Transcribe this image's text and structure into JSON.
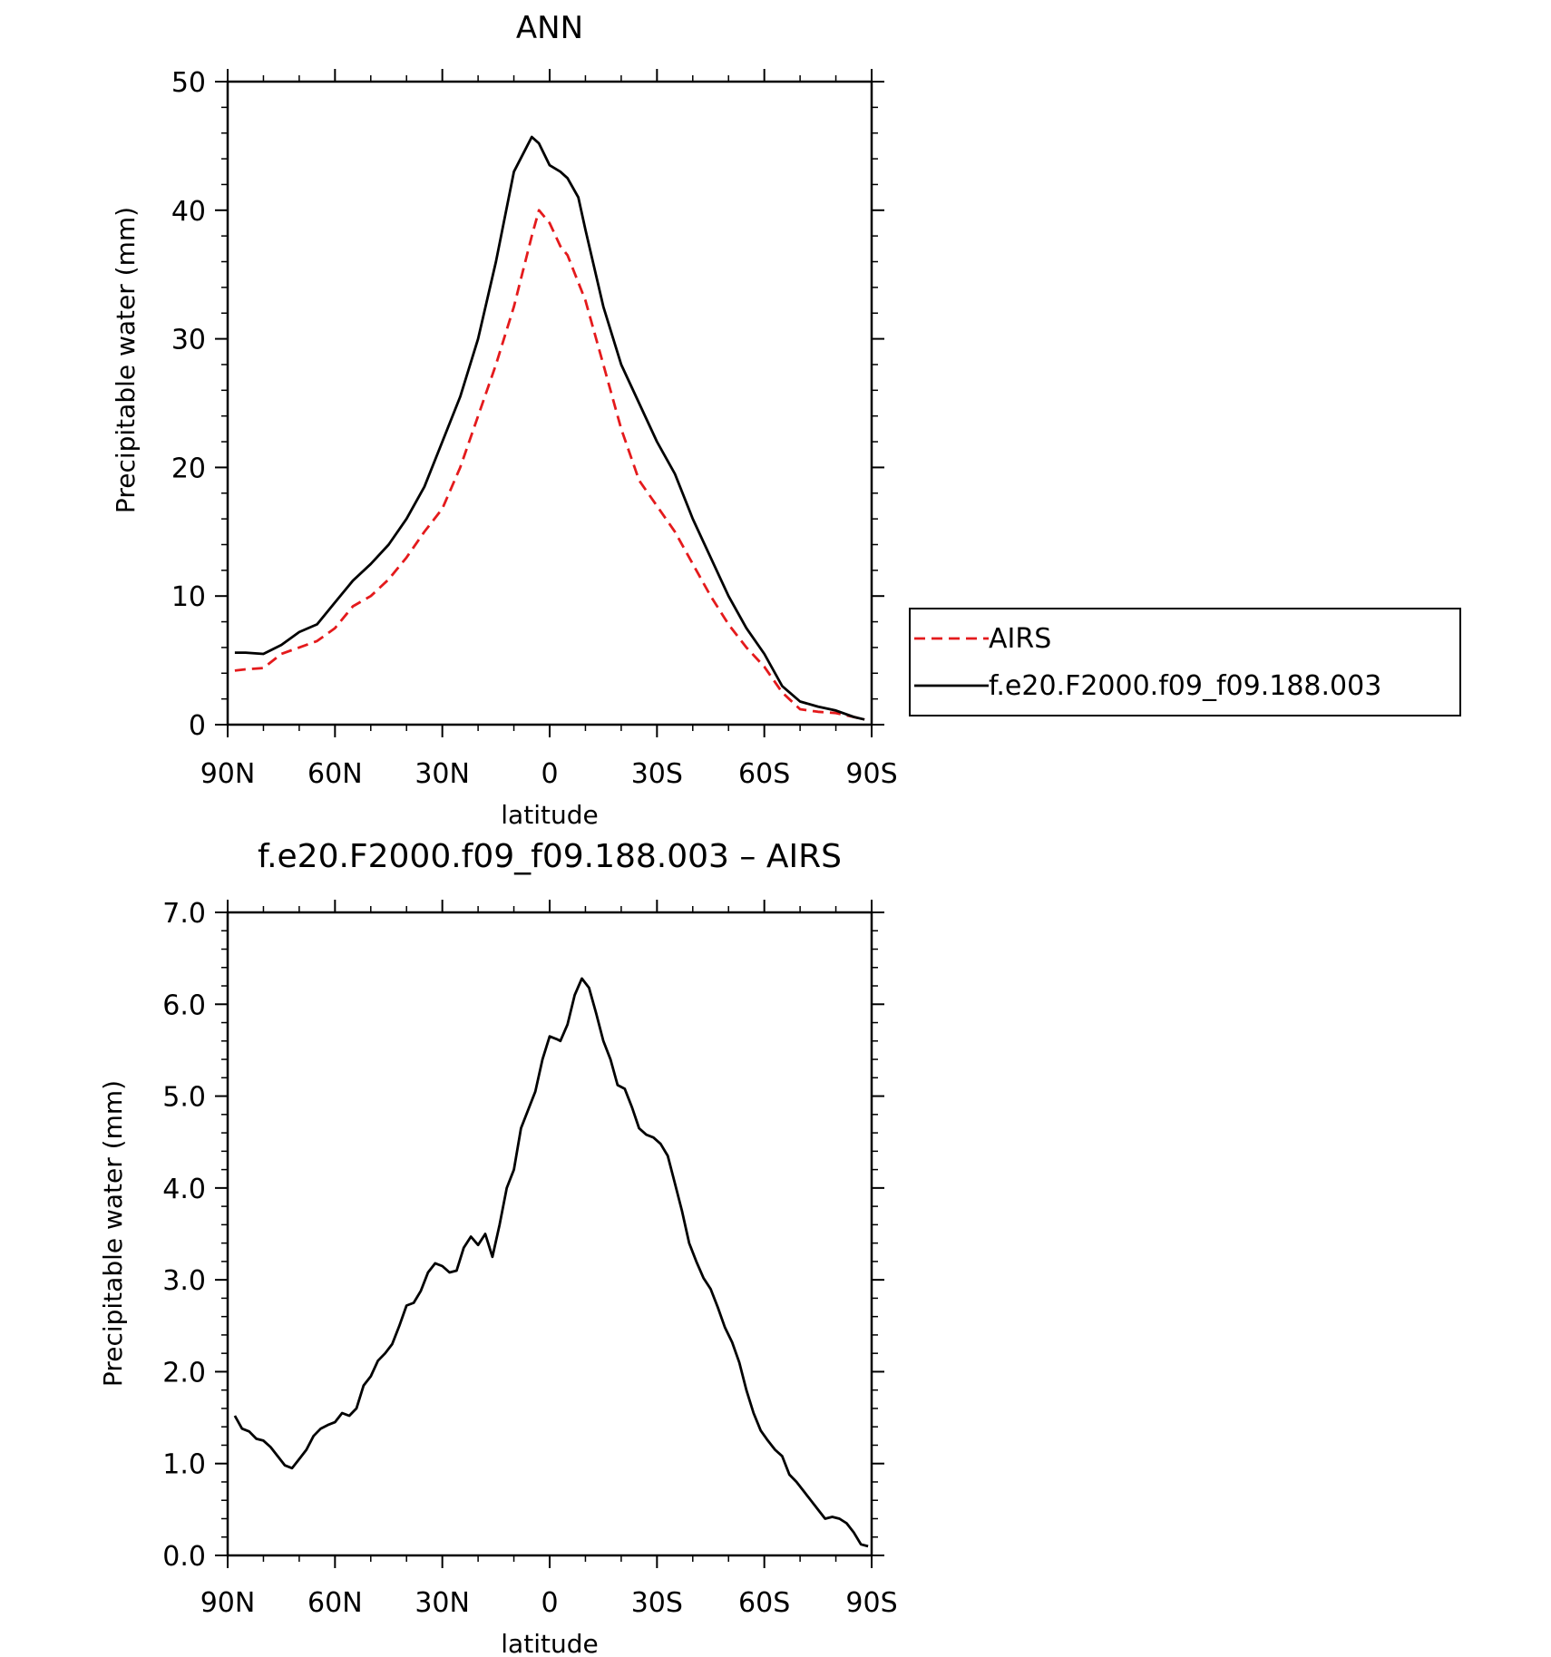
{
  "chart_data": [
    {
      "type": "line",
      "title": "ANN",
      "xlabel": "latitude",
      "ylabel": "Precipitable water (mm)",
      "ylim": [
        0,
        50
      ],
      "yticks": [
        "0",
        "10",
        "20",
        "30",
        "40",
        "50"
      ],
      "xlim": [
        90,
        -90
      ],
      "xticks": [
        {
          "value": 90,
          "label": "90N"
        },
        {
          "value": 60,
          "label": "60N"
        },
        {
          "value": 30,
          "label": "30N"
        },
        {
          "value": 0,
          "label": "0"
        },
        {
          "value": -30,
          "label": "30S"
        },
        {
          "value": -60,
          "label": "60S"
        },
        {
          "value": -90,
          "label": "90S"
        }
      ],
      "legend": {
        "position": "right",
        "boxed": true
      },
      "series": [
        {
          "name": "AIRS",
          "color": "#e41a1c",
          "dash": "dashed",
          "x": [
            88,
            85,
            80,
            75,
            70,
            65,
            60,
            55,
            50,
            45,
            40,
            35,
            30,
            25,
            20,
            15,
            10,
            5,
            3,
            0,
            -3,
            -5,
            -10,
            -15,
            -20,
            -25,
            -30,
            -35,
            -40,
            -45,
            -50,
            -55,
            -60,
            -65,
            -70,
            -75,
            -80,
            -85,
            -88
          ],
          "y": [
            4.2,
            4.3,
            4.4,
            5.5,
            6.0,
            6.5,
            7.5,
            9.2,
            10.0,
            11.3,
            13.0,
            15.0,
            16.8,
            20.0,
            24.0,
            28.0,
            32.5,
            38.0,
            40.0,
            39.0,
            37.2,
            36.5,
            33.0,
            28.0,
            23.0,
            19.0,
            17.0,
            15.0,
            12.5,
            10.0,
            7.8,
            6.0,
            4.5,
            2.5,
            1.2,
            1.0,
            0.9,
            0.6,
            0.4
          ]
        },
        {
          "name": "f.e20.F2000.f09_f09.188.003",
          "color": "#000000",
          "dash": "solid",
          "x": [
            88,
            85,
            80,
            75,
            70,
            65,
            60,
            55,
            50,
            45,
            40,
            35,
            30,
            25,
            20,
            15,
            10,
            5,
            3,
            0,
            -3,
            -5,
            -8,
            -10,
            -15,
            -20,
            -25,
            -30,
            -35,
            -40,
            -45,
            -50,
            -55,
            -60,
            -65,
            -70,
            -75,
            -80,
            -85,
            -88
          ],
          "y": [
            5.6,
            5.6,
            5.5,
            6.2,
            7.2,
            7.8,
            9.5,
            11.2,
            12.5,
            14.0,
            16.0,
            18.5,
            22.0,
            25.5,
            30.0,
            36.0,
            43.0,
            45.7,
            45.2,
            43.5,
            43.0,
            42.5,
            41.0,
            38.5,
            32.5,
            28.0,
            25.0,
            22.0,
            19.5,
            16.0,
            13.0,
            10.0,
            7.5,
            5.5,
            3.0,
            1.8,
            1.4,
            1.1,
            0.6,
            0.4
          ]
        }
      ]
    },
    {
      "type": "line",
      "title": "f.e20.F2000.f09_f09.188.003 – AIRS",
      "xlabel": "latitude",
      "ylabel": "Precipitable water (mm)",
      "ylim": [
        0,
        7
      ],
      "yticks": [
        "0.0",
        "1.0",
        "2.0",
        "3.0",
        "4.0",
        "5.0",
        "6.0",
        "7.0"
      ],
      "xlim": [
        90,
        -90
      ],
      "xticks": [
        {
          "value": 90,
          "label": "90N"
        },
        {
          "value": 60,
          "label": "60N"
        },
        {
          "value": 30,
          "label": "30N"
        },
        {
          "value": 0,
          "label": "0"
        },
        {
          "value": -30,
          "label": "30S"
        },
        {
          "value": -60,
          "label": "60S"
        },
        {
          "value": -90,
          "label": "90S"
        }
      ],
      "series": [
        {
          "color": "#000000",
          "dash": "solid",
          "x": [
            88,
            86,
            84,
            82,
            80,
            78,
            76,
            74,
            72,
            70,
            68,
            66,
            64,
            62,
            60,
            58,
            56,
            54,
            52,
            50,
            48,
            46,
            44,
            42,
            40,
            38,
            36,
            34,
            32,
            30,
            28,
            26,
            24,
            22,
            20,
            18,
            16,
            14,
            12,
            10,
            8,
            6,
            4,
            2,
            0,
            -2,
            -3,
            -5,
            -7,
            -9,
            -11,
            -13,
            -15,
            -17,
            -19,
            -21,
            -23,
            -25,
            -27,
            -29,
            -31,
            -33,
            -35,
            -37,
            -39,
            -41,
            -43,
            -45,
            -47,
            -49,
            -51,
            -53,
            -55,
            -57,
            -59,
            -61,
            -63,
            -65,
            -67,
            -69,
            -71,
            -73,
            -75,
            -77,
            -79,
            -81,
            -83,
            -85,
            -87,
            -89
          ],
          "y": [
            1.52,
            1.38,
            1.35,
            1.27,
            1.25,
            1.18,
            1.08,
            0.98,
            0.95,
            1.05,
            1.15,
            1.3,
            1.38,
            1.42,
            1.45,
            1.55,
            1.52,
            1.6,
            1.85,
            1.95,
            2.12,
            2.2,
            2.3,
            2.5,
            2.72,
            2.75,
            2.88,
            3.08,
            3.18,
            3.15,
            3.08,
            3.1,
            3.35,
            3.47,
            3.38,
            3.5,
            3.25,
            3.6,
            4.0,
            4.2,
            4.65,
            4.85,
            5.05,
            5.4,
            5.65,
            5.62,
            5.6,
            5.78,
            6.1,
            6.28,
            6.18,
            5.9,
            5.6,
            5.4,
            5.12,
            5.08,
            4.88,
            4.65,
            4.58,
            4.55,
            4.48,
            4.35,
            4.05,
            3.75,
            3.4,
            3.2,
            3.02,
            2.9,
            2.7,
            2.48,
            2.32,
            2.1,
            1.8,
            1.55,
            1.36,
            1.25,
            1.15,
            1.08,
            0.88,
            0.8,
            0.7,
            0.6,
            0.5,
            0.4,
            0.42,
            0.4,
            0.35,
            0.25,
            0.12,
            0.1
          ]
        }
      ]
    }
  ]
}
